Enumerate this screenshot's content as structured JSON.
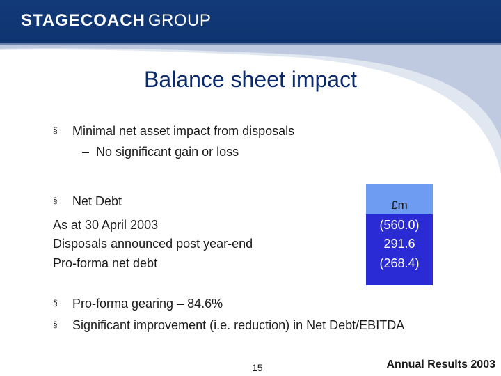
{
  "header": {
    "logo_brand": "STAGECOACH",
    "logo_group": "GROUP"
  },
  "slide": {
    "title": "Balance sheet impact",
    "bullet1": "Minimal net asset impact from disposals",
    "sub1": "No significant gain or loss",
    "bullet2": "Net Debt",
    "rows": [
      {
        "label": "As at 30 April 2003",
        "value": "(560.0)"
      },
      {
        "label": "Disposals announced post year-end",
        "value": "291.6"
      },
      {
        "label": "Pro-forma net debt",
        "value": "(268.4)"
      }
    ],
    "unit": "£m",
    "bullet3": "Pro-forma gearing – 84.6%",
    "bullet4": "Significant improvement (i.e. reduction) in Net Debt/EBITDA",
    "bullet_mark": "§",
    "sub_mark": "–"
  },
  "footer": {
    "page": "15",
    "brand": "Annual Results 2003"
  },
  "colors": {
    "banner": "#123a78",
    "title": "#0b2a6b",
    "column": "#2a2bd4",
    "column_header": "#6e9cf2"
  }
}
